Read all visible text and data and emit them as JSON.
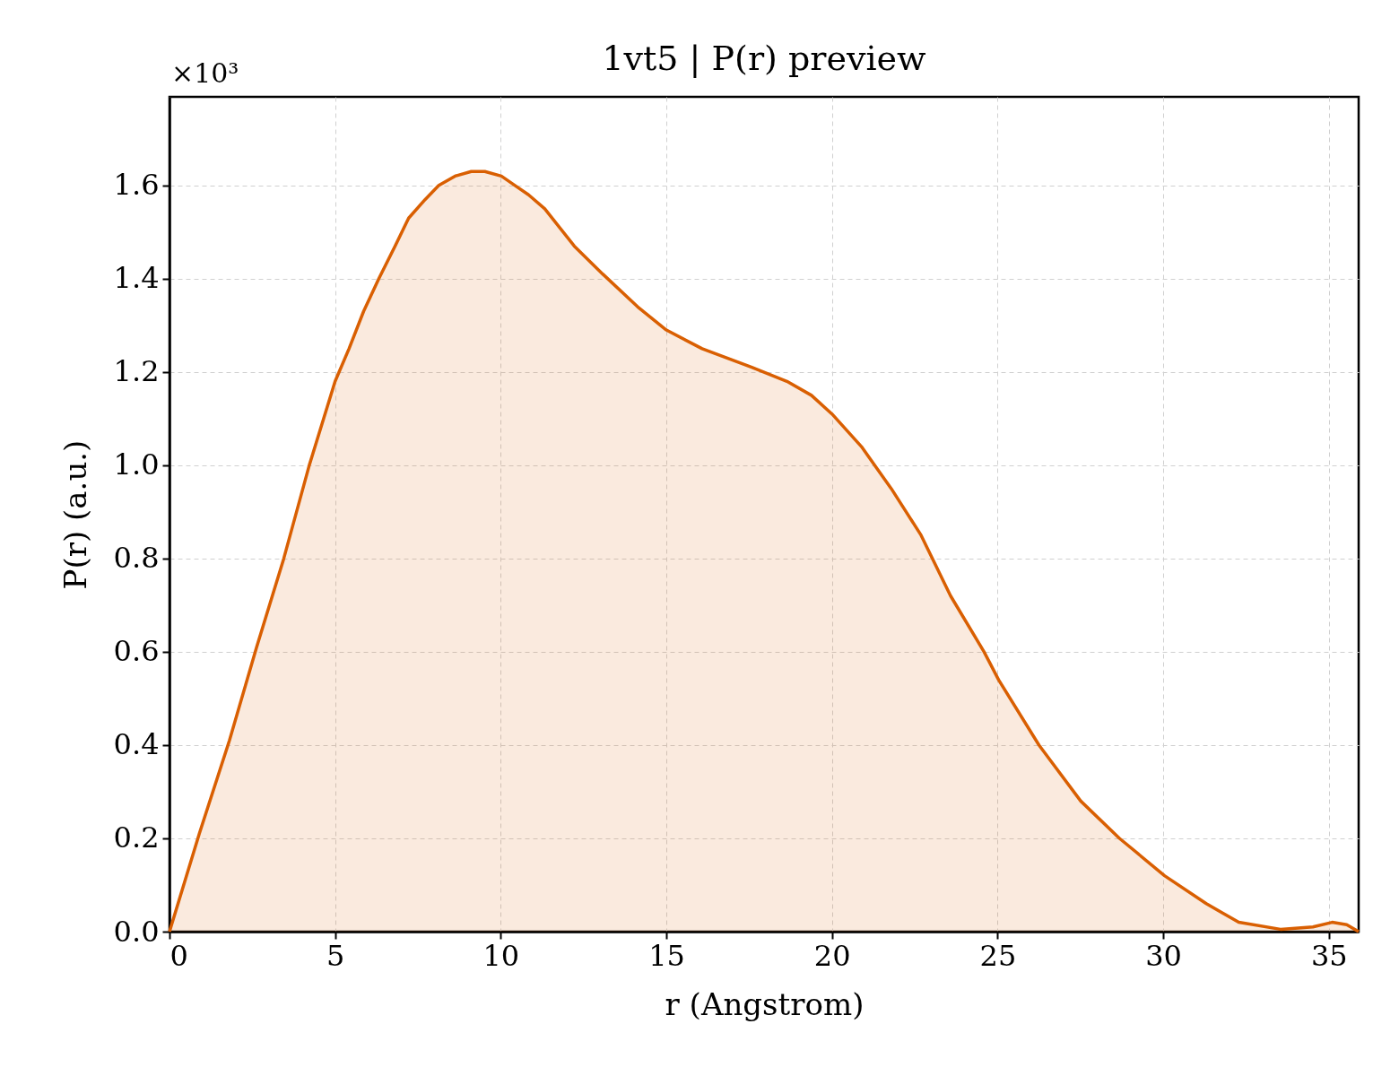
{
  "chart_data": {
    "type": "area",
    "title": "1vt5 | P(r) preview",
    "xlabel": "r (Angstrom)",
    "ylabel": "P(r) (a.u.)",
    "annotations": [
      "×10³"
    ],
    "x": [
      0,
      0.9,
      1.81,
      2.63,
      3.45,
      4.22,
      5.0,
      5.42,
      5.86,
      6.32,
      6.81,
      7.22,
      7.72,
      8.13,
      8.62,
      9.11,
      9.52,
      10.02,
      10.43,
      10.84,
      11.33,
      12.22,
      13.08,
      14.13,
      15.0,
      16.08,
      17.58,
      18.64,
      19.38,
      20.0,
      20.89,
      21.79,
      22.69,
      23.58,
      24.59,
      25.03,
      26.25,
      27.51,
      28.68,
      30.04,
      31.3,
      32.28,
      33.54,
      34.52,
      35.1,
      35.54,
      35.9
    ],
    "series": [
      {
        "color": "#d95f02",
        "values": [
          0,
          0.21,
          0.41,
          0.61,
          0.8,
          1.0,
          1.18,
          1.25,
          1.33,
          1.4,
          1.47,
          1.53,
          1.57,
          1.6,
          1.62,
          1.63,
          1.63,
          1.62,
          1.6,
          1.58,
          1.55,
          1.47,
          1.41,
          1.34,
          1.29,
          1.25,
          1.21,
          1.18,
          1.15,
          1.11,
          1.04,
          0.95,
          0.85,
          0.72,
          0.6,
          0.54,
          0.4,
          0.28,
          0.2,
          0.12,
          0.06,
          0.02,
          0.005,
          0.01,
          0.02,
          0.015,
          0
        ]
      }
    ],
    "xlim": [
      0,
      35.9
    ],
    "ylim": [
      0,
      1.79
    ],
    "xticks": [
      0,
      5,
      10,
      15,
      20,
      25,
      30,
      35
    ],
    "yticks": [
      {
        "value": 0,
        "label": "0.0"
      },
      0.2,
      0.4,
      0.6,
      0.8,
      {
        "value": 1,
        "label": "1.0"
      },
      1.2,
      1.4,
      1.6
    ],
    "grid": true
  }
}
